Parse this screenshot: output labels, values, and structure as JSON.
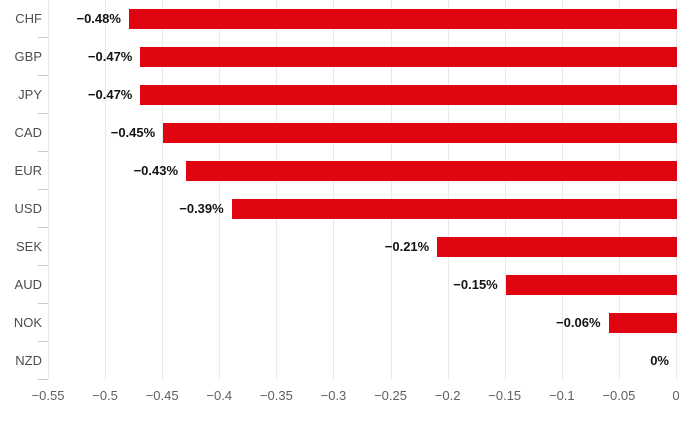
{
  "chart_data": {
    "type": "bar",
    "orientation": "horizontal",
    "title": "",
    "xlabel": "",
    "ylabel": "",
    "categories": [
      "CHF",
      "GBP",
      "JPY",
      "CAD",
      "EUR",
      "USD",
      "SEK",
      "AUD",
      "NOK",
      "NZD"
    ],
    "values": [
      -0.48,
      -0.47,
      -0.47,
      -0.45,
      -0.43,
      -0.39,
      -0.21,
      -0.15,
      -0.06,
      0
    ],
    "value_labels": [
      "−0.48%",
      "−0.47%",
      "−0.47%",
      "−0.45%",
      "−0.43%",
      "−0.39%",
      "−0.21%",
      "−0.15%",
      "−0.06%",
      "0%"
    ],
    "xlim": [
      -0.55,
      0
    ],
    "x_ticks": [
      -0.55,
      -0.5,
      -0.45,
      -0.4,
      -0.35,
      -0.3,
      -0.25,
      -0.2,
      -0.15,
      -0.1,
      -0.05,
      0
    ],
    "x_tick_labels": [
      "−0.55",
      "−0.5",
      "−0.45",
      "−0.4",
      "−0.35",
      "−0.3",
      "−0.25",
      "−0.2",
      "−0.15",
      "−0.1",
      "−0.05",
      "0"
    ],
    "grid": true,
    "legend": "none",
    "colors": {
      "bar": "#e00511",
      "gridline": "#e9e9e9",
      "axis_line": "#c9c9d0",
      "category_label": "#4d4d4d",
      "value_label": "#141414",
      "x_tick_label": "#606060",
      "background": "#ffffff"
    }
  }
}
